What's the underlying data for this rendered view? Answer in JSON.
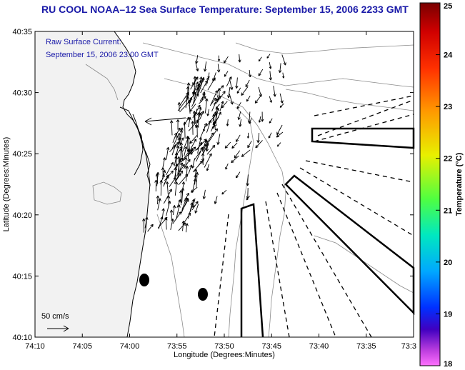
{
  "title": "RU COOL  NOAA–12  Sea Surface Temperature:  September 15, 2006 2233 GMT",
  "caption": {
    "line1": "Raw Surface Current:",
    "line2": "September 15, 2006 23:00 GMT"
  },
  "axes": {
    "xlabel": "Longitude (Degrees:Minutes)",
    "ylabel": "Latitude (Degrees:Minutes)",
    "x_ticks": [
      "74:10",
      "74:05",
      "74:00",
      "73:55",
      "73:50",
      "73:45",
      "73:40",
      "73:35",
      "73:3"
    ],
    "y_ticks": [
      "40:35",
      "40:30",
      "40:25",
      "40:20",
      "40:15",
      "40:10"
    ]
  },
  "scale_label": "50 cm/s",
  "colorbar": {
    "label": "Temperature (°C)",
    "ticks": [
      "25",
      "24",
      "23",
      "22",
      "21",
      "20",
      "19",
      "18"
    ],
    "min": 18,
    "max": 25
  }
}
